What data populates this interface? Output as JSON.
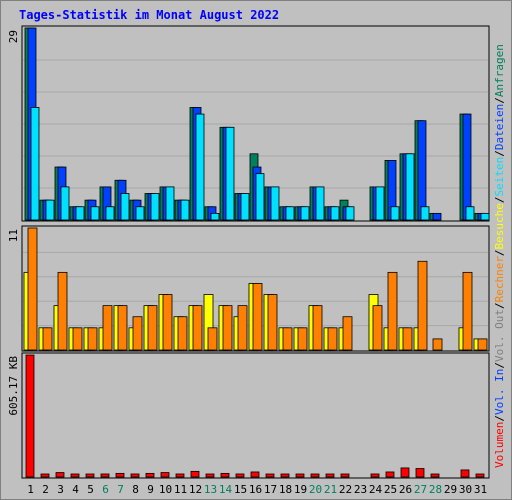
{
  "title": "Tages-Statistik im Monat August 2022",
  "colors": {
    "background": "#C0C0C0",
    "title": "#0000FF",
    "panel_border": "#000000",
    "gridline": "#A8A8A8",
    "anfragen": "#00805C",
    "dateien": "#0040FF",
    "seiten": "#00E0FF",
    "besuche": "#FFFF00",
    "rechner": "#FF8000",
    "volumen": "#FF0000",
    "weekend_label": "#00805C",
    "weekday_label": "#000000"
  },
  "chart_data": [
    {
      "type": "bar",
      "panel": "top",
      "ymax_label": "29",
      "ylim": [
        0,
        29
      ],
      "categories": [
        "1",
        "2",
        "3",
        "4",
        "5",
        "6",
        "7",
        "8",
        "9",
        "10",
        "11",
        "12",
        "13",
        "14",
        "15",
        "16",
        "17",
        "18",
        "19",
        "20",
        "21",
        "22",
        "23",
        "24",
        "25",
        "26",
        "27",
        "28",
        "29",
        "30",
        "31"
      ],
      "weekend_days": [
        "6",
        "7",
        "13",
        "14",
        "20",
        "21",
        "27",
        "28"
      ],
      "series": [
        {
          "name": "Anfragen",
          "color": "#00805C",
          "values": [
            29,
            3,
            8,
            2,
            3,
            5,
            6,
            3,
            4,
            5,
            3,
            17,
            2,
            14,
            4,
            10,
            5,
            2,
            2,
            5,
            2,
            3,
            0,
            5,
            9,
            10,
            15,
            1,
            0,
            16,
            1
          ]
        },
        {
          "name": "Dateien",
          "color": "#0040FF",
          "values": [
            29,
            3,
            8,
            2,
            3,
            5,
            6,
            3,
            4,
            5,
            3,
            17,
            2,
            14,
            4,
            8,
            5,
            2,
            2,
            5,
            2,
            2,
            0,
            5,
            9,
            10,
            15,
            1,
            0,
            16,
            1
          ]
        },
        {
          "name": "Seiten",
          "color": "#00E0FF",
          "values": [
            17,
            3,
            5,
            2,
            2,
            2,
            4,
            2,
            4,
            5,
            3,
            16,
            1,
            14,
            4,
            7,
            5,
            2,
            2,
            5,
            2,
            2,
            0,
            5,
            2,
            10,
            2,
            0,
            0,
            2,
            1
          ]
        }
      ],
      "right_legend": [
        "Anfragen",
        "/",
        "Dateien",
        "/",
        "Seiten",
        "/",
        "Besuche",
        "/",
        "Rechner",
        "/",
        "Vol. Out",
        "/",
        "Vol. In",
        "/",
        "Volumen"
      ]
    },
    {
      "type": "bar",
      "panel": "middle",
      "ymax_label": "11",
      "ylim": [
        0,
        11
      ],
      "series": [
        {
          "name": "Besuche",
          "color": "#FFFF00",
          "values": [
            7,
            2,
            4,
            2,
            2,
            2,
            4,
            2,
            4,
            5,
            3,
            4,
            5,
            4,
            3,
            6,
            5,
            2,
            2,
            4,
            2,
            2,
            0,
            5,
            2,
            2,
            2,
            0,
            0,
            2,
            1
          ]
        },
        {
          "name": "Rechner",
          "color": "#FF8000",
          "values": [
            11,
            2,
            7,
            2,
            2,
            4,
            4,
            3,
            4,
            5,
            3,
            4,
            2,
            4,
            4,
            6,
            5,
            2,
            2,
            4,
            2,
            3,
            0,
            4,
            7,
            2,
            8,
            1,
            0,
            7,
            1
          ]
        }
      ]
    },
    {
      "type": "bar",
      "panel": "bottom",
      "ymax_label": "605.17 KB",
      "ylim": [
        0,
        605.17
      ],
      "series": [
        {
          "name": "Volumen",
          "color": "#FF0000",
          "values": [
            605,
            10,
            22,
            8,
            8,
            15,
            18,
            15,
            18,
            22,
            15,
            28,
            10,
            18,
            15,
            25,
            12,
            8,
            8,
            12,
            8,
            8,
            0,
            15,
            25,
            45,
            42,
            8,
            0,
            35,
            8
          ]
        }
      ]
    }
  ]
}
